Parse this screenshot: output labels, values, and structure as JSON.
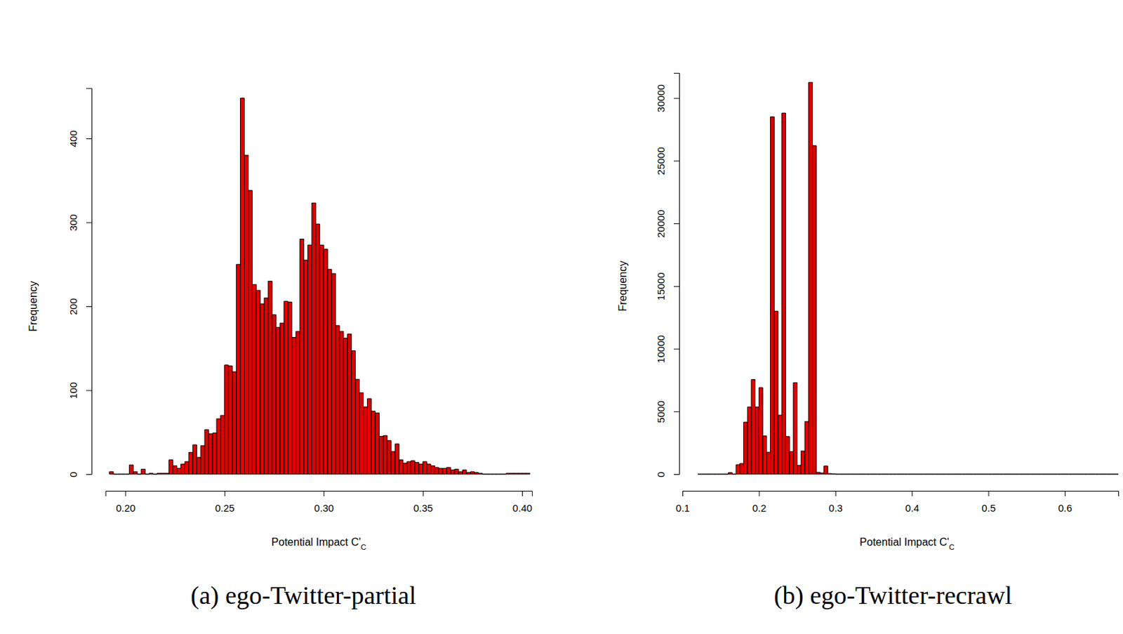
{
  "chart_data": [
    {
      "type": "histogram",
      "title": "(a) ego-Twitter-partial",
      "xlabel": "Potential Impact C'C",
      "ylabel": "Frequency",
      "color": "#e00000",
      "bins": [
        0.192,
        0.194,
        0.196,
        0.198,
        0.2,
        0.202,
        0.204,
        0.206,
        0.208,
        0.21,
        0.212,
        0.214,
        0.216,
        0.218,
        0.22,
        0.222,
        0.224,
        0.226,
        0.228,
        0.23,
        0.232,
        0.234,
        0.236,
        0.238,
        0.24,
        0.242,
        0.244,
        0.246,
        0.248,
        0.25,
        0.252,
        0.254,
        0.256,
        0.258,
        0.26,
        0.262,
        0.264,
        0.266,
        0.268,
        0.27,
        0.272,
        0.274,
        0.276,
        0.278,
        0.28,
        0.282,
        0.284,
        0.286,
        0.288,
        0.29,
        0.292,
        0.294,
        0.296,
        0.298,
        0.3,
        0.302,
        0.304,
        0.306,
        0.308,
        0.31,
        0.312,
        0.314,
        0.316,
        0.318,
        0.32,
        0.322,
        0.324,
        0.326,
        0.328,
        0.33,
        0.332,
        0.334,
        0.336,
        0.338,
        0.34,
        0.342,
        0.344,
        0.346,
        0.348,
        0.35,
        0.352,
        0.354,
        0.356,
        0.358,
        0.36,
        0.362,
        0.364,
        0.366,
        0.368,
        0.37,
        0.372,
        0.374,
        0.376,
        0.378,
        0.38,
        0.382,
        0.384,
        0.386,
        0.388,
        0.39,
        0.392,
        0.394,
        0.396,
        0.398,
        0.4,
        0.402,
        0.404
      ],
      "values": [
        3,
        0,
        0,
        0,
        0,
        11,
        3,
        0,
        6,
        0,
        1,
        0,
        1,
        1,
        1,
        17,
        10,
        7,
        12,
        15,
        26,
        35,
        20,
        34,
        53,
        48,
        49,
        66,
        70,
        130,
        129,
        122,
        250,
        448,
        380,
        338,
        226,
        219,
        203,
        210,
        230,
        190,
        175,
        180,
        206,
        205,
        163,
        170,
        280,
        255,
        273,
        323,
        298,
        273,
        268,
        244,
        239,
        177,
        170,
        162,
        167,
        147,
        113,
        97,
        80,
        90,
        75,
        73,
        45,
        46,
        40,
        27,
        36,
        17,
        13,
        15,
        16,
        14,
        12,
        15,
        12,
        10,
        8,
        7,
        7,
        8,
        5,
        6,
        3,
        5,
        2,
        3,
        2,
        1,
        0,
        0,
        0,
        0,
        0,
        0,
        1,
        1,
        1,
        1,
        1,
        1
      ],
      "xlim": [
        0.19,
        0.405
      ],
      "xticks": [
        {
          "value": 0.2,
          "label": "0.20"
        },
        0.25,
        {
          "value": 0.3,
          "label": "0.30"
        },
        0.35,
        {
          "value": 0.4,
          "label": "0.40"
        }
      ],
      "ylim": [
        0,
        460
      ],
      "yticks": [
        0,
        100,
        200,
        300,
        400
      ]
    },
    {
      "type": "histogram",
      "title": "(b) ego-Twitter-recrawl",
      "xlabel": "Potential Impact C'C",
      "ylabel": "Frequency",
      "color": "#e00000",
      "bins": [
        0.12,
        0.125,
        0.13,
        0.135,
        0.14,
        0.145,
        0.15,
        0.155,
        0.16,
        0.165,
        0.17,
        0.175,
        0.18,
        0.185,
        0.19,
        0.195,
        0.2,
        0.205,
        0.21,
        0.215,
        0.22,
        0.225,
        0.23,
        0.235,
        0.24,
        0.245,
        0.25,
        0.255,
        0.26,
        0.265,
        0.27,
        0.275,
        0.28,
        0.285,
        0.29,
        0.295,
        0.3,
        0.305,
        0.31,
        0.315,
        0.32,
        0.325,
        0.33,
        0.335,
        0.34,
        0.345,
        0.35,
        0.355,
        0.36,
        0.365,
        0.37,
        0.375,
        0.38,
        0.385,
        0.39,
        0.395,
        0.4,
        0.405,
        0.41,
        0.415,
        0.42,
        0.425,
        0.43,
        0.435,
        0.44,
        0.445,
        0.45,
        0.455,
        0.46,
        0.465,
        0.47,
        0.475,
        0.48,
        0.485,
        0.49,
        0.495,
        0.5,
        0.505,
        0.51,
        0.515,
        0.52,
        0.525,
        0.53,
        0.535,
        0.54,
        0.545,
        0.55,
        0.555,
        0.56,
        0.565,
        0.57,
        0.575,
        0.58,
        0.585,
        0.59,
        0.595,
        0.6,
        0.605,
        0.61,
        0.615,
        0.62,
        0.625,
        0.63,
        0.635,
        0.64,
        0.645,
        0.65,
        0.655,
        0.66,
        0.665,
        0.67
      ],
      "values": [
        0,
        0,
        0,
        0,
        0,
        0,
        0,
        0,
        120,
        0,
        750,
        850,
        4150,
        5350,
        7550,
        5350,
        6900,
        3050,
        1750,
        28500,
        13000,
        4700,
        28800,
        3000,
        1800,
        7300,
        700,
        1850,
        4200,
        31250,
        26200,
        150,
        100,
        650,
        50,
        20,
        0,
        0,
        0,
        0,
        0,
        0,
        0,
        0,
        0,
        0,
        0,
        0,
        0,
        0,
        0,
        0,
        0,
        0,
        0,
        0,
        0,
        0,
        0,
        0,
        0,
        0,
        0,
        0,
        0,
        0,
        0,
        0,
        0,
        0,
        0,
        0,
        0,
        0,
        0,
        0,
        0,
        0,
        0,
        0,
        0,
        0,
        0,
        0,
        0,
        0,
        0,
        0,
        0,
        0,
        0,
        0,
        0,
        0,
        0,
        0,
        0,
        0,
        0,
        0,
        0,
        0,
        0,
        0,
        0,
        0,
        0,
        0,
        0,
        0
      ],
      "xlim": [
        0.1,
        0.67
      ],
      "xticks": [
        0.1,
        0.2,
        0.3,
        0.4,
        0.5,
        0.6
      ],
      "ylim": [
        0,
        32000
      ],
      "yticks": [
        0,
        5000,
        10000,
        15000,
        20000,
        25000,
        30000
      ]
    }
  ]
}
